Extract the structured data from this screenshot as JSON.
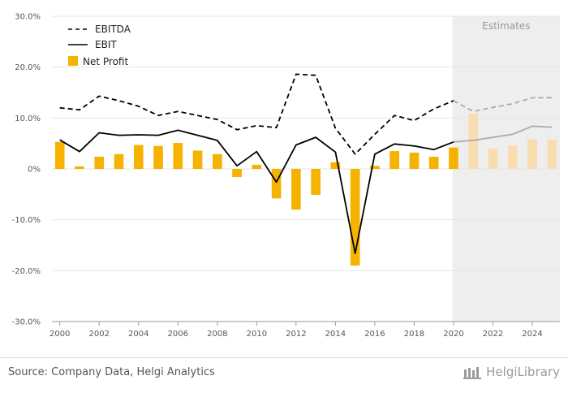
{
  "chart_data": {
    "type": "bar+line",
    "title": "",
    "xlabel": "",
    "ylabel": "",
    "ylim": [
      -30,
      30
    ],
    "yticks": [
      "30.0%",
      "20.0%",
      "10.0%",
      "0%",
      "-10.0%",
      "-20.0%",
      "-30.0%"
    ],
    "ytick_values": [
      30,
      20,
      10,
      0,
      -10,
      -20,
      -30
    ],
    "x": [
      2000,
      2001,
      2002,
      2003,
      2004,
      2005,
      2006,
      2007,
      2008,
      2009,
      2010,
      2011,
      2012,
      2013,
      2014,
      2015,
      2016,
      2017,
      2018,
      2019,
      2020,
      2021,
      2022,
      2023,
      2024,
      2025
    ],
    "xticks": [
      "2000",
      "2002",
      "2004",
      "2006",
      "2008",
      "2010",
      "2012",
      "2014",
      "2016",
      "2018",
      "2020",
      "2022",
      "2024"
    ],
    "xtick_values": [
      2000,
      2002,
      2004,
      2006,
      2008,
      2010,
      2012,
      2014,
      2016,
      2018,
      2020,
      2022,
      2024
    ],
    "estimates_from": 2020,
    "estimates_label": "Estimates",
    "grid": true,
    "legend_position": "top-left",
    "series": [
      {
        "name": "EBITDA",
        "type": "line",
        "style": "dashed",
        "color": "#000000",
        "values": [
          12.0,
          11.6,
          14.3,
          13.4,
          12.3,
          10.5,
          11.3,
          10.5,
          9.7,
          7.7,
          8.5,
          8.1,
          18.6,
          18.4,
          8.0,
          2.9,
          6.8,
          10.5,
          9.5,
          11.8,
          13.4,
          11.3,
          12.1,
          12.8,
          14.0,
          14.0
        ]
      },
      {
        "name": "EBIT",
        "type": "line",
        "style": "solid",
        "color": "#000000",
        "values": [
          5.7,
          3.4,
          7.1,
          6.6,
          6.7,
          6.6,
          7.6,
          6.6,
          5.6,
          0.6,
          3.4,
          -2.6,
          4.7,
          6.2,
          3.3,
          -16.6,
          2.9,
          4.9,
          4.5,
          3.8,
          5.3,
          5.6,
          6.2,
          6.8,
          8.4,
          8.2
        ]
      },
      {
        "name": "Net Profit",
        "type": "bar",
        "color": "#f5b300",
        "values": [
          5.3,
          0.5,
          2.4,
          2.9,
          4.7,
          4.5,
          5.1,
          3.6,
          2.9,
          -1.6,
          0.8,
          -5.8,
          -8.0,
          -5.1,
          1.3,
          -19.0,
          0.6,
          3.5,
          3.2,
          2.4,
          4.2,
          10.9,
          4.0,
          4.6,
          5.8,
          5.8
        ]
      }
    ]
  },
  "footer": {
    "source": "Source: Company Data, Helgi Analytics",
    "brand": "HelgiLibrary"
  },
  "colors": {
    "bar": "#f5b300",
    "bar_estimate": "#f7ddb0",
    "line_estimate": "#aaaaaa",
    "estimate_band": "#eeeeee",
    "grid": "#e6e6e6"
  }
}
